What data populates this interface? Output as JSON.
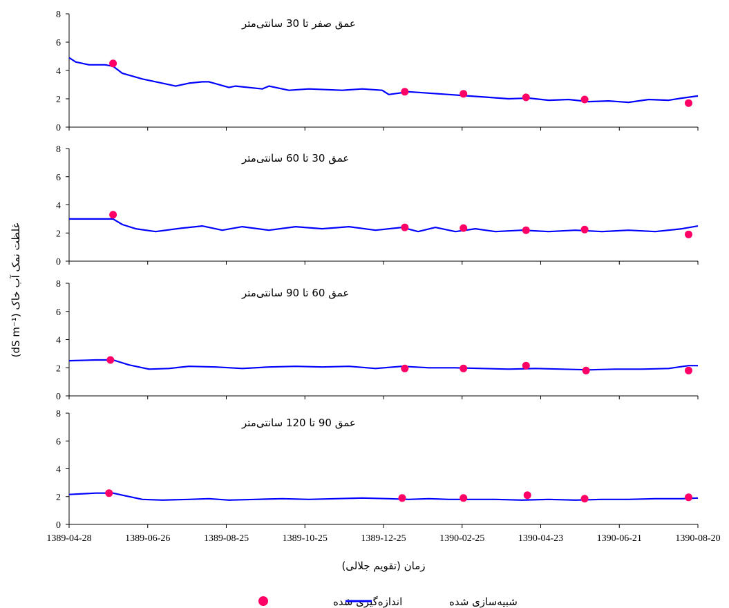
{
  "chart_data": {
    "type": "line",
    "xlabel": "زمان (تقویم جلالی)",
    "ylabel": "غلظت نمک آب خاک  (dS m⁻¹)",
    "x_tick_labels": [
      "1389-04-28",
      "1389-06-26",
      "1389-08-25",
      "1389-10-25",
      "1389-12-25",
      "1390-02-25",
      "1390-04-23",
      "1390-06-21",
      "1390-08-20"
    ],
    "y_ticks": [
      0,
      2,
      4,
      6,
      8
    ],
    "ylim": [
      0,
      8
    ],
    "xlim_days": [
      0,
      472
    ],
    "legend": {
      "simulated": "شبیه‌سازی شده",
      "measured": "اندازه‌گیری شده",
      "simulated_color": "#0000ff",
      "measured_color": "#ff0066"
    },
    "panels": [
      {
        "title": "عمق صفر تا 30 سانتی‌متر",
        "series": [
          {
            "name": "شبیه‌سازی شده",
            "x": [
              0,
              5,
              15,
              27,
              33,
              40,
              55,
              70,
              80,
              90,
              100,
              105,
              120,
              125,
              145,
              150,
              165,
              180,
              205,
              220,
              235,
              240,
              255,
              270,
              285,
              300,
              315,
              330,
              345,
              360,
              375,
              390,
              405,
              420,
              435,
              450,
              460,
              472
            ],
            "y": [
              4.9,
              4.6,
              4.4,
              4.4,
              4.3,
              3.8,
              3.4,
              3.1,
              2.9,
              3.1,
              3.2,
              3.2,
              2.8,
              2.9,
              2.7,
              2.9,
              2.6,
              2.7,
              2.6,
              2.7,
              2.6,
              2.3,
              2.5,
              2.4,
              2.3,
              2.2,
              2.1,
              2.0,
              2.05,
              1.9,
              1.95,
              1.8,
              1.85,
              1.75,
              1.95,
              1.9,
              2.05,
              2.2
            ]
          },
          {
            "name": "اندازه‌گیری شده",
            "x": [
              33,
              252,
              296,
              343,
              387,
              465
            ],
            "y": [
              4.5,
              2.5,
              2.35,
              2.1,
              1.95,
              1.7
            ]
          }
        ]
      },
      {
        "title": "عمق 30 تا 60 سانتی‌متر",
        "series": [
          {
            "name": "شبیه‌سازی شده",
            "x": [
              0,
              10,
              25,
              33,
              40,
              50,
              65,
              85,
              100,
              115,
              130,
              150,
              170,
              190,
              210,
              230,
              250,
              262,
              275,
              290,
              305,
              320,
              340,
              360,
              380,
              400,
              420,
              440,
              460,
              472
            ],
            "y": [
              3.0,
              3.0,
              3.0,
              3.0,
              2.6,
              2.3,
              2.1,
              2.35,
              2.5,
              2.2,
              2.45,
              2.2,
              2.45,
              2.3,
              2.45,
              2.2,
              2.4,
              2.1,
              2.4,
              2.1,
              2.3,
              2.1,
              2.2,
              2.1,
              2.2,
              2.1,
              2.2,
              2.1,
              2.3,
              2.5
            ]
          },
          {
            "name": "اندازه‌گیری شده",
            "x": [
              33,
              252,
              296,
              343,
              387,
              465
            ],
            "y": [
              3.3,
              2.4,
              2.35,
              2.2,
              2.25,
              1.9
            ]
          }
        ]
      },
      {
        "title": "عمق 60 تا 90 سانتی‌متر",
        "series": [
          {
            "name": "شبیه‌سازی شده",
            "x": [
              0,
              20,
              33,
              45,
              60,
              75,
              90,
              110,
              130,
              150,
              170,
              190,
              210,
              230,
              250,
              270,
              290,
              310,
              330,
              350,
              370,
              390,
              410,
              430,
              450,
              465,
              472
            ],
            "y": [
              2.5,
              2.55,
              2.55,
              2.2,
              1.9,
              1.95,
              2.1,
              2.05,
              1.95,
              2.05,
              2.1,
              2.05,
              2.1,
              1.95,
              2.1,
              2.0,
              2.0,
              1.95,
              1.9,
              1.95,
              1.9,
              1.85,
              1.9,
              1.9,
              1.95,
              2.15,
              2.15
            ]
          },
          {
            "name": "اندازه‌گیری شده",
            "x": [
              31,
              252,
              296,
              343,
              388,
              465
            ],
            "y": [
              2.55,
              1.95,
              1.95,
              2.15,
              1.8,
              1.8
            ]
          }
        ]
      },
      {
        "title": "عمق 90 تا 120 سانتی‌متر",
        "series": [
          {
            "name": "شبیه‌سازی شده",
            "x": [
              0,
              20,
              33,
              40,
              55,
              70,
              90,
              105,
              120,
              140,
              160,
              180,
              200,
              220,
              240,
              255,
              270,
              285,
              300,
              320,
              340,
              360,
              380,
              400,
              420,
              440,
              460,
              472
            ],
            "y": [
              2.15,
              2.25,
              2.25,
              2.1,
              1.8,
              1.75,
              1.8,
              1.85,
              1.75,
              1.8,
              1.85,
              1.8,
              1.85,
              1.9,
              1.85,
              1.8,
              1.85,
              1.8,
              1.8,
              1.8,
              1.75,
              1.8,
              1.75,
              1.8,
              1.8,
              1.85,
              1.85,
              1.9
            ]
          },
          {
            "name": "اندازه‌گیری شده",
            "x": [
              30,
              250,
              296,
              344,
              387,
              465
            ],
            "y": [
              2.25,
              1.9,
              1.9,
              2.1,
              1.85,
              1.95
            ]
          }
        ]
      }
    ]
  }
}
